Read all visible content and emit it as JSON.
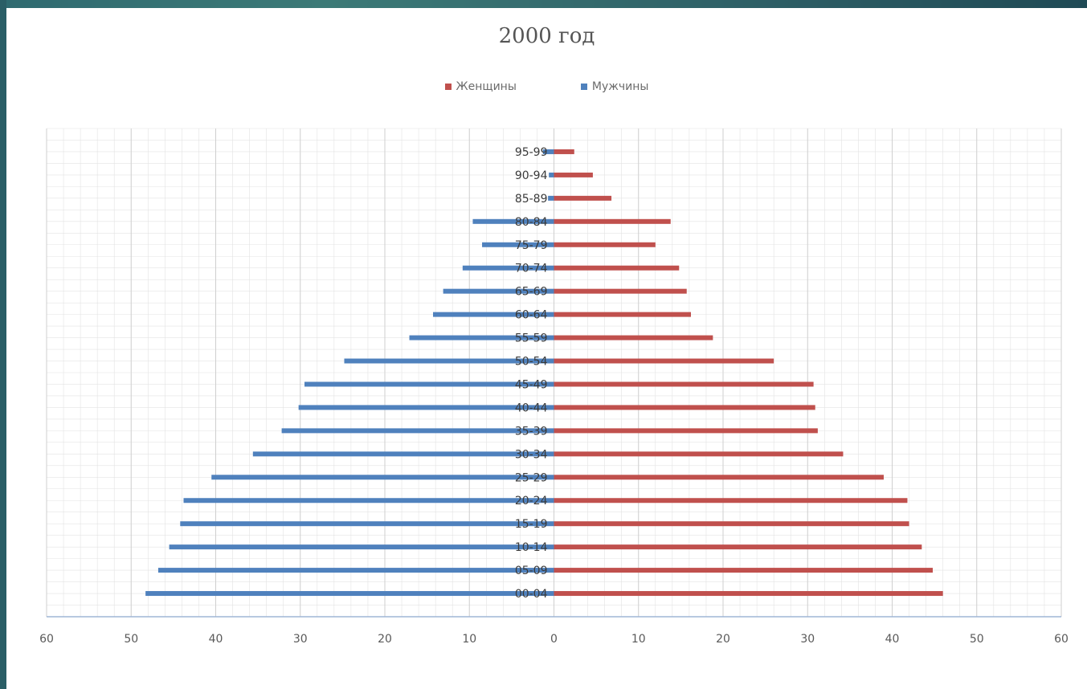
{
  "colors": {
    "women": "#c0504d",
    "men": "#4f81bd",
    "grid": "#e3e3e3",
    "axis": "#9fb6d6",
    "label": "#595959"
  },
  "chart_data": {
    "type": "bar",
    "orientation": "horizontal",
    "title": "2000 год",
    "legend_position": "top",
    "grid": true,
    "categories": [
      "00-04",
      "05-09",
      "10-14",
      "15-19",
      "20-24",
      "25-29",
      "30-34",
      "35-39",
      "40-44",
      "45-49",
      "50-54",
      "55-59",
      "60-64",
      "65-69",
      "70-74",
      "75-79",
      "80-84",
      "85-89",
      "90-94",
      "95-99"
    ],
    "series": [
      {
        "name": "Женщины",
        "values": [
          46,
          44.8,
          43.5,
          42,
          41.8,
          39,
          34.2,
          31.2,
          30.9,
          30.7,
          26,
          18.8,
          16.2,
          15.7,
          14.8,
          12,
          13.8,
          6.8,
          4.6,
          2.4
        ]
      },
      {
        "name": "Мужчины",
        "values": [
          -48.3,
          -46.8,
          -45.5,
          -44.2,
          -43.8,
          -40.5,
          -35.6,
          -32.2,
          -30.2,
          -29.5,
          -24.8,
          -17.1,
          -14.3,
          -13.1,
          -10.8,
          -8.5,
          -9.6,
          -0.7,
          -0.6,
          -1.3
        ]
      }
    ],
    "x_ticks": [
      "60",
      "50",
      "40",
      "30",
      "20",
      "10",
      "0",
      "10",
      "20",
      "30",
      "40",
      "50",
      "60"
    ],
    "xlim": [
      -60,
      60
    ]
  }
}
